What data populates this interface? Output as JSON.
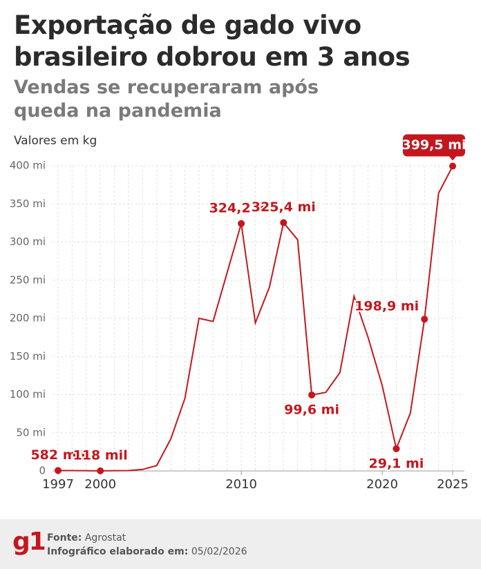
{
  "header": {
    "title": "Exportação de gado vivo brasileiro dobrou em 3 anos",
    "subtitle": "Vendas se recuperaram após queda na pandemia",
    "note": "Valores em kg"
  },
  "chart_data": {
    "type": "line",
    "x": [
      1997,
      1998,
      1999,
      2000,
      2001,
      2002,
      2003,
      2004,
      2005,
      2006,
      2007,
      2008,
      2009,
      2010,
      2011,
      2012,
      2013,
      2014,
      2015,
      2016,
      2017,
      2018,
      2019,
      2020,
      2021,
      2022,
      2023,
      2024,
      2025
    ],
    "series": [
      {
        "color": "#c4171d",
        "values": [
          0.582,
          0.5,
          0.3,
          0.118,
          0.3,
          0.5,
          2,
          7,
          42,
          95,
          200,
          196,
          260,
          324.2,
          194,
          241,
          325.4,
          303,
          99.6,
          103,
          129,
          229,
          175,
          112,
          29.1,
          76,
          198.9,
          364,
          399.5
        ],
        "value_labels": [
          "582 mil",
          null,
          null,
          "118 mil",
          null,
          null,
          null,
          null,
          null,
          null,
          null,
          null,
          null,
          "324,2 mi",
          null,
          null,
          "325,4 mi",
          null,
          "99,6 mi",
          null,
          null,
          null,
          null,
          null,
          "29,1 mi",
          null,
          "198,9 mi",
          null,
          "399,5 mi"
        ]
      }
    ],
    "xlim": [
      1997,
      2025
    ],
    "xticks": [
      1997,
      2000,
      2010,
      2020,
      2025
    ],
    "ylim": [
      0,
      400
    ],
    "yticks": [
      0,
      {
        "value": 50,
        "label": "50 mi"
      },
      {
        "value": 100,
        "label": "100 mi"
      },
      {
        "value": 150,
        "label": "150 mi"
      },
      {
        "value": 200,
        "label": "200 mi"
      },
      {
        "value": 250,
        "label": "250 mi"
      },
      {
        "value": 300,
        "label": "300 mi"
      },
      {
        "value": 350,
        "label": "350 mi"
      },
      {
        "value": 400,
        "label": "400 mi"
      }
    ],
    "grid": true
  },
  "footer": {
    "logo": "g1",
    "source_label": "Fonte:",
    "source": "Agrostat",
    "date_label": "Infográfico elaborado em:",
    "date": "05/02/2026"
  }
}
